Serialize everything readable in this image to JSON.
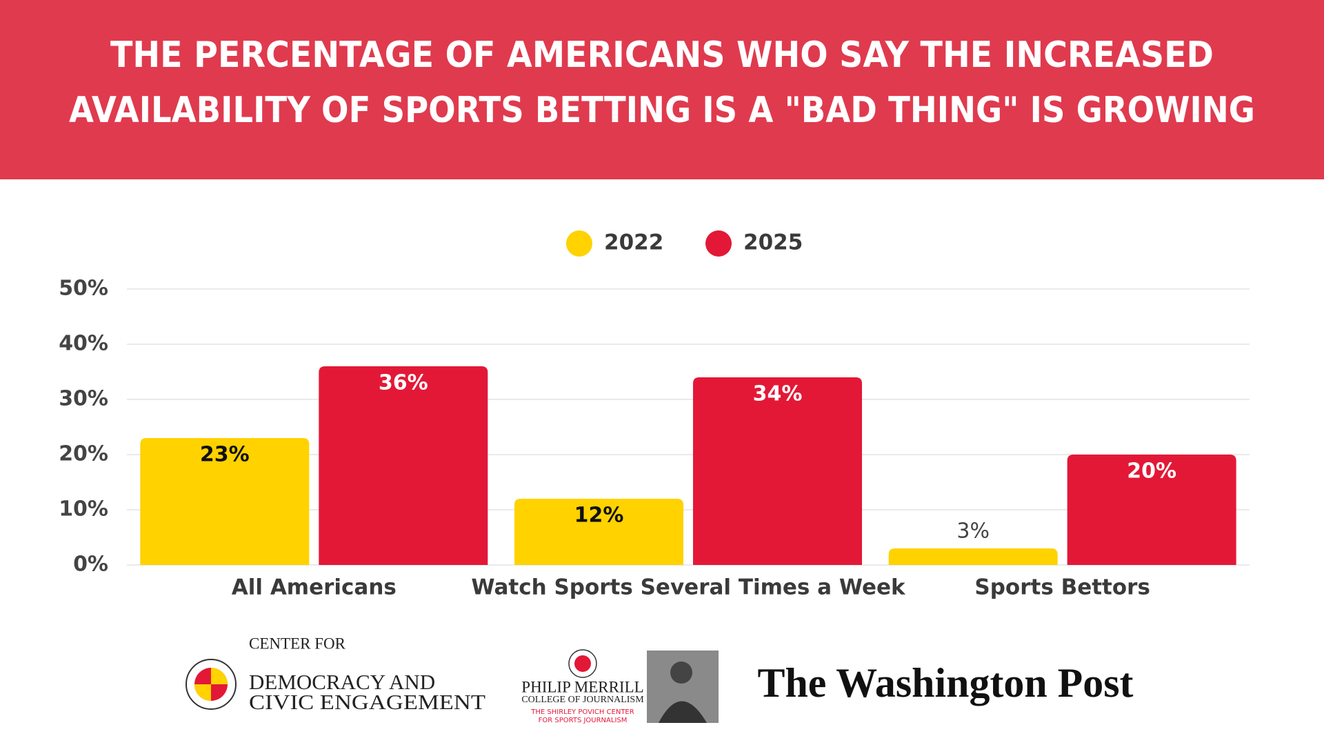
{
  "chart_data": {
    "type": "bar",
    "title": [
      "THE PERCENTAGE OF AMERICANS WHO SAY THE INCREASED",
      "AVAILABILITY OF SPORTS BETTING IS A \"BAD THING\" IS GROWING"
    ],
    "categories": [
      "All Americans",
      "Watch Sports Several Times a Week",
      "Sports Bettors"
    ],
    "series": [
      {
        "name": "2022",
        "color": "#ffd200",
        "values": [
          23,
          12,
          3
        ],
        "value_labels": [
          "23%",
          "12%",
          "3%"
        ]
      },
      {
        "name": "2025",
        "color": "#e31837",
        "values": [
          36,
          34,
          20
        ],
        "value_labels": [
          "36%",
          "34%",
          "20%"
        ]
      }
    ],
    "ylim": [
      0,
      50
    ],
    "yticks": [
      {
        "value": 0,
        "label": "0%"
      },
      {
        "value": 10,
        "label": "10%"
      },
      {
        "value": 20,
        "label": "20%"
      },
      {
        "value": 30,
        "label": "30%"
      },
      {
        "value": 40,
        "label": "40%"
      },
      {
        "value": 50,
        "label": "50%"
      }
    ],
    "grid": true,
    "legend": "top"
  },
  "logos": {
    "cdce": [
      "CENTER FOR",
      "DEMOCRACY AND",
      "CIVIC ENGAGEMENT"
    ],
    "merrill": [
      "PHILIP MERRILL",
      "COLLEGE OF JOURNALISM",
      "THE SHIRLEY POVICH CENTER",
      "FOR SPORTS JOURNALISM"
    ],
    "wapo": "The Washington Post"
  }
}
